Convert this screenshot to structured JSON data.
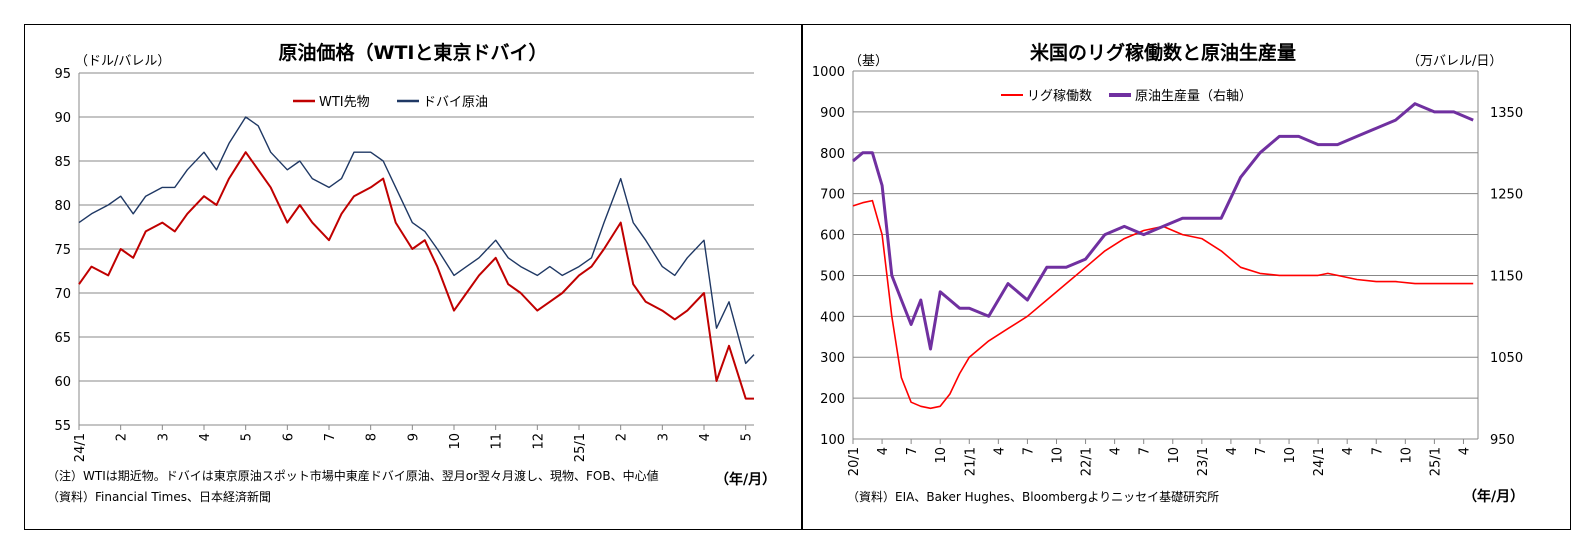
{
  "left": {
    "title": "原油価格（WTIと東京ドバイ）",
    "y_unit": "（ドル/バレル）",
    "x_unit": "（年/月）",
    "note": "（注）WTIは期近物。ドバイは東京原油スポット市場中東産ドバイ原油、翌月or翌々月渡し、現物、FOB、中心値",
    "source": "（資料）Financial Times、日本経済新聞"
  },
  "right": {
    "title": "米国のリグ稼働数と原油生産量",
    "y_unit_left": "（基）",
    "y_unit_right": "（万バレル/日）",
    "x_unit": "（年/月）",
    "source": "（資料）EIA、Baker Hughes、Bloombergよりニッセイ基礎研究所"
  },
  "chart_data": [
    {
      "type": "line",
      "title": "原油価格（WTIと東京ドバイ）",
      "ylabel": "（ドル/バレル）",
      "xlabel": "（年/月）",
      "ylim": [
        55,
        95
      ],
      "yticks": [
        55,
        60,
        65,
        70,
        75,
        80,
        85,
        90,
        95
      ],
      "xticks": [
        "24/1",
        "2",
        "3",
        "4",
        "5",
        "6",
        "7",
        "8",
        "9",
        "10",
        "11",
        "12",
        "25/1",
        "2",
        "3",
        "4",
        "5"
      ],
      "grid": true,
      "legend": "top-center",
      "x_months": [
        0,
        0.3,
        0.7,
        1,
        1.3,
        1.6,
        2,
        2.3,
        2.6,
        3,
        3.3,
        3.6,
        4,
        4.3,
        4.6,
        5,
        5.3,
        5.6,
        6,
        6.3,
        6.6,
        7,
        7.3,
        7.6,
        8,
        8.3,
        8.6,
        9,
        9.3,
        9.6,
        10,
        10.3,
        10.6,
        11,
        11.3,
        11.6,
        12,
        12.3,
        12.6,
        13,
        13.3,
        13.6,
        14,
        14.3,
        14.6,
        15,
        15.3,
        15.6,
        16,
        16.2
      ],
      "series": [
        {
          "name": "WTI先物",
          "color": "#c00000",
          "values": [
            71,
            73,
            72,
            75,
            74,
            77,
            78,
            77,
            79,
            81,
            80,
            83,
            86,
            84,
            82,
            78,
            80,
            78,
            76,
            79,
            81,
            82,
            83,
            78,
            75,
            76,
            73,
            68,
            70,
            72,
            74,
            71,
            70,
            68,
            69,
            70,
            72,
            73,
            75,
            78,
            71,
            69,
            68,
            67,
            68,
            70,
            60,
            64,
            58,
            58
          ]
        },
        {
          "name": "ドバイ原油",
          "color": "#1f3864",
          "values": [
            78,
            79,
            80,
            81,
            79,
            81,
            82,
            82,
            84,
            86,
            84,
            87,
            90,
            89,
            86,
            84,
            85,
            83,
            82,
            83,
            86,
            86,
            85,
            82,
            78,
            77,
            75,
            72,
            73,
            74,
            76,
            74,
            73,
            72,
            73,
            72,
            73,
            74,
            78,
            83,
            78,
            76,
            73,
            72,
            74,
            76,
            66,
            69,
            62,
            63
          ]
        }
      ]
    },
    {
      "type": "line",
      "title": "米国のリグ稼働数と原油生産量",
      "ylabel": "（基）",
      "ylabel_right": "（万バレル/日）",
      "xlabel": "（年/月）",
      "ylim": [
        100,
        1000
      ],
      "ylim_right": [
        950,
        1400
      ],
      "yticks": [
        100,
        200,
        300,
        400,
        500,
        600,
        700,
        800,
        900,
        1000
      ],
      "yticks_right": [
        950,
        1050,
        1150,
        1250,
        1350
      ],
      "xticks": [
        "20/1",
        "4",
        "7",
        "10",
        "21/1",
        "4",
        "7",
        "10",
        "22/1",
        "4",
        "7",
        "10",
        "23/1",
        "4",
        "7",
        "10",
        "24/1",
        "4",
        "7",
        "10",
        "25/1",
        "4"
      ],
      "grid": true,
      "legend": "top-center",
      "x_months": [
        0,
        1,
        2,
        3,
        4,
        5,
        6,
        7,
        8,
        9,
        10,
        11,
        12,
        14,
        16,
        18,
        20,
        22,
        24,
        26,
        28,
        30,
        32,
        34,
        36,
        38,
        40,
        42,
        44,
        46,
        48,
        49,
        50,
        52,
        54,
        56,
        58,
        60,
        62,
        64
      ],
      "series": [
        {
          "name": "リグ稼働数",
          "axis": "left",
          "color": "#ff0000",
          "values": [
            670,
            678,
            683,
            600,
            400,
            250,
            190,
            180,
            175,
            180,
            210,
            260,
            300,
            340,
            370,
            400,
            440,
            480,
            520,
            560,
            590,
            610,
            620,
            600,
            590,
            560,
            520,
            505,
            500,
            500,
            500,
            505,
            500,
            490,
            485,
            485,
            480,
            480,
            480,
            480
          ]
        },
        {
          "name": "原油生産量（右軸）",
          "axis": "right",
          "color": "#7030a0",
          "values": [
            1290,
            1300,
            1300,
            1260,
            1150,
            1120,
            1090,
            1120,
            1060,
            1130,
            1120,
            1110,
            1110,
            1100,
            1140,
            1120,
            1160,
            1160,
            1170,
            1200,
            1210,
            1200,
            1210,
            1220,
            1220,
            1220,
            1270,
            1300,
            1320,
            1320,
            1310,
            1310,
            1310,
            1320,
            1330,
            1340,
            1360,
            1350,
            1350,
            1340
          ]
        }
      ]
    }
  ]
}
